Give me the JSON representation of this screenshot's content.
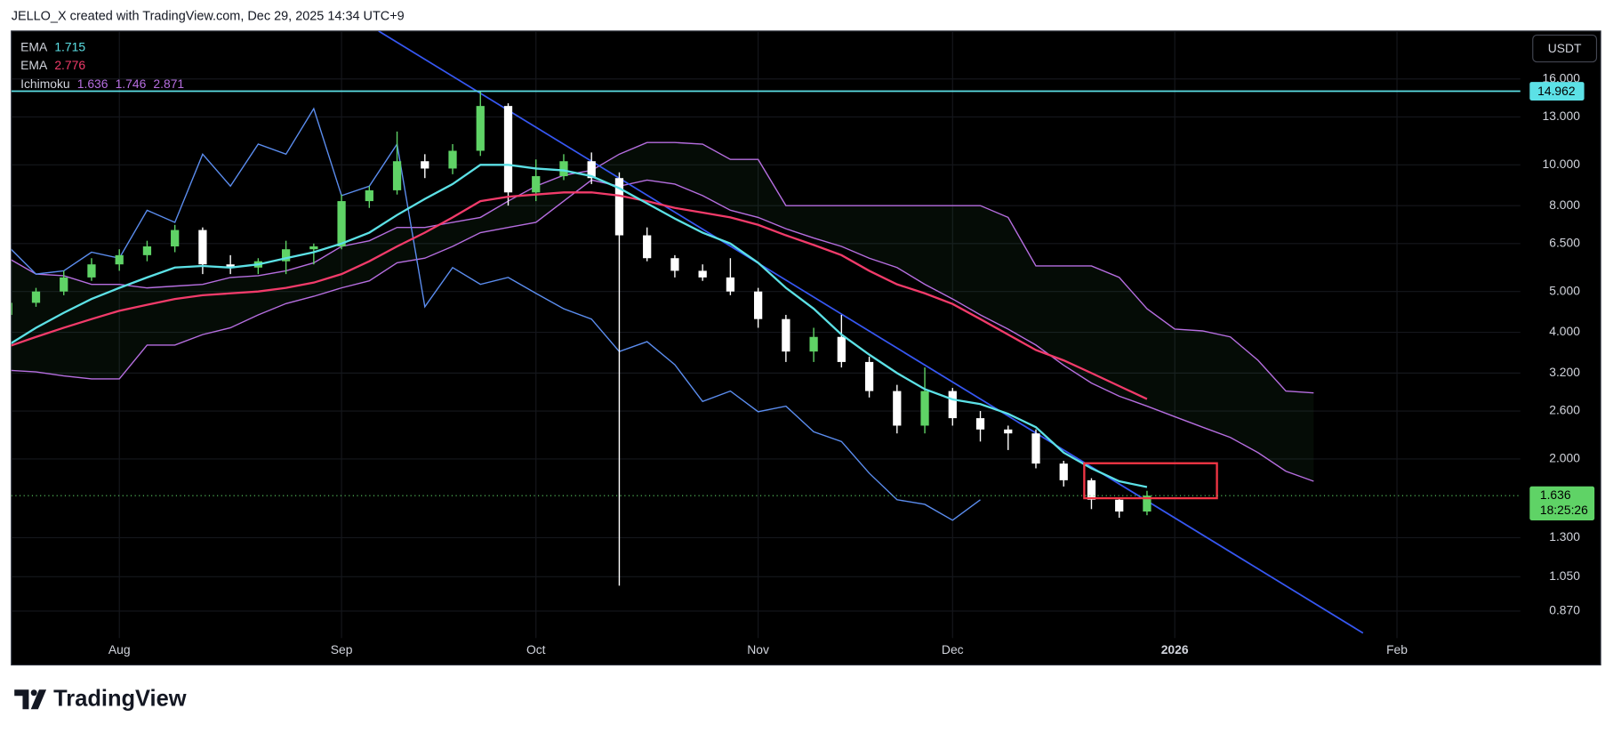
{
  "header": "JELLO_X created with TradingView.com, Dec 29, 2025 14:34 UTC+9",
  "brand": "TradingView",
  "currency": "USDT",
  "legend": [
    {
      "name": "EMA",
      "values": [
        1.715
      ],
      "color": "#5ce1e6"
    },
    {
      "name": "EMA",
      "values": [
        2.776
      ],
      "color": "#f23b6a"
    },
    {
      "name": "Ichimoku",
      "values": [
        1.636,
        1.746,
        2.871
      ],
      "color": "#b66ee0"
    }
  ],
  "chart_data": {
    "type": "candlestick",
    "log_scale": true,
    "grid": true,
    "up_color": "#5fd366",
    "down_color": "#ffffff",
    "categories": [
      null,
      null,
      null,
      null,
      "Aug",
      null,
      null,
      null,
      null,
      null,
      null,
      null,
      "Sep",
      null,
      null,
      null,
      null,
      null,
      null,
      "Oct",
      null,
      null,
      null,
      null,
      null,
      null,
      null,
      "Nov",
      null,
      null,
      null,
      null,
      null,
      null,
      "Dec",
      null,
      null,
      null,
      null,
      null,
      null,
      null,
      "2026",
      null,
      null,
      null,
      null,
      null,
      null,
      null,
      "Feb",
      null,
      null,
      null,
      null
    ],
    "open": [
      4.4,
      4.7,
      5.0,
      5.4,
      5.8,
      6.1,
      6.4,
      7.0,
      5.8,
      5.7,
      5.9,
      6.3,
      6.4,
      8.2,
      8.7,
      10.2,
      9.8,
      10.8,
      13.8,
      8.6,
      9.4,
      10.2,
      9.3,
      6.8,
      6.0,
      5.6,
      5.4,
      5.0,
      4.3,
      3.6,
      3.9,
      3.4,
      2.9,
      2.4,
      2.9,
      2.5,
      2.35,
      2.3,
      1.95,
      1.78,
      1.6,
      1.5,
      null,
      null,
      null,
      null,
      null,
      null,
      null,
      null,
      null,
      null,
      null,
      null,
      null
    ],
    "high": [
      4.8,
      5.1,
      5.6,
      6.0,
      6.3,
      6.6,
      7.2,
      7.1,
      6.1,
      6.0,
      6.6,
      6.5,
      8.5,
      8.9,
      12.0,
      10.6,
      11.2,
      15.0,
      14.0,
      10.3,
      10.6,
      10.7,
      9.6,
      7.1,
      6.1,
      5.8,
      6.0,
      5.1,
      4.4,
      4.1,
      4.4,
      3.5,
      3.0,
      3.3,
      2.95,
      2.6,
      2.4,
      2.35,
      1.98,
      1.8,
      1.62,
      1.68,
      null,
      null,
      null,
      null,
      null,
      null,
      null,
      null,
      null,
      null,
      null,
      null,
      null
    ],
    "low": [
      4.3,
      4.6,
      4.9,
      5.3,
      5.6,
      5.9,
      6.2,
      5.5,
      5.5,
      5.5,
      5.5,
      5.8,
      6.3,
      7.9,
      8.5,
      9.3,
      9.5,
      10.5,
      8.0,
      8.2,
      9.2,
      9.0,
      1.0,
      5.9,
      5.4,
      5.3,
      4.9,
      4.1,
      3.4,
      3.4,
      3.3,
      2.8,
      2.3,
      2.3,
      2.4,
      2.2,
      2.1,
      1.9,
      1.72,
      1.52,
      1.45,
      1.47,
      null,
      null,
      null,
      null,
      null,
      null,
      null,
      null,
      null,
      null,
      null,
      null,
      null
    ],
    "close": [
      4.7,
      5.0,
      5.4,
      5.8,
      6.1,
      6.4,
      7.0,
      5.8,
      5.7,
      5.9,
      6.3,
      6.4,
      8.2,
      8.7,
      10.2,
      9.8,
      10.8,
      13.8,
      8.6,
      9.4,
      10.2,
      9.3,
      6.8,
      6.0,
      5.6,
      5.4,
      5.0,
      4.3,
      3.6,
      3.9,
      3.4,
      2.9,
      2.4,
      2.9,
      2.5,
      2.35,
      2.3,
      1.95,
      1.78,
      1.6,
      1.5,
      1.636,
      null,
      null,
      null,
      null,
      null,
      null,
      null,
      null,
      null,
      null,
      null,
      null,
      null
    ],
    "series": [
      {
        "color": "#5ce1e6",
        "values": [
          3.73,
          4.1,
          4.45,
          4.8,
          5.1,
          5.4,
          5.7,
          5.75,
          5.7,
          5.8,
          6.0,
          6.2,
          6.5,
          6.9,
          7.6,
          8.3,
          9.0,
          10.0,
          10.0,
          9.8,
          9.7,
          9.4,
          8.8,
          8.1,
          7.45,
          6.9,
          6.5,
          5.85,
          5.1,
          4.55,
          3.95,
          3.54,
          3.2,
          2.93,
          2.77,
          2.7,
          2.56,
          2.38,
          2.07,
          1.9,
          1.77,
          1.715,
          null,
          null,
          null,
          null,
          null,
          null,
          null,
          null,
          null,
          null,
          null,
          null,
          null
        ]
      },
      {
        "color": "#f23b6a",
        "values": [
          3.7,
          3.9,
          4.1,
          4.3,
          4.5,
          4.65,
          4.8,
          4.9,
          4.95,
          5.0,
          5.1,
          5.25,
          5.5,
          5.9,
          6.4,
          6.9,
          7.5,
          8.2,
          8.4,
          8.5,
          8.6,
          8.6,
          8.45,
          8.2,
          7.9,
          7.7,
          7.5,
          7.2,
          6.8,
          6.45,
          6.1,
          5.6,
          5.2,
          4.95,
          4.67,
          4.3,
          3.95,
          3.63,
          3.43,
          3.2,
          2.98,
          2.776,
          null,
          null,
          null,
          null,
          null,
          null,
          null,
          null,
          null,
          null,
          null,
          null,
          null
        ]
      },
      {
        "color": "#5b8def",
        "values": [
          6.4,
          5.5,
          5.6,
          6.2,
          6.0,
          7.8,
          7.3,
          10.6,
          8.9,
          11.2,
          10.6,
          13.6,
          8.45,
          8.9,
          11.2,
          4.6,
          5.7,
          5.2,
          5.4,
          4.95,
          4.55,
          4.3,
          3.6,
          3.8,
          3.35,
          2.74,
          2.9,
          2.59,
          2.67,
          2.32,
          2.2,
          1.85,
          1.6,
          1.56,
          1.43,
          1.6,
          null,
          null,
          null,
          null,
          null,
          null,
          null,
          null,
          null,
          null,
          null,
          null,
          null,
          null,
          null,
          null,
          null,
          null,
          null
        ]
      },
      {
        "color": "#b66ee0",
        "values": [
          6.0,
          5.5,
          5.45,
          5.2,
          5.2,
          5.1,
          5.15,
          5.2,
          5.4,
          5.45,
          5.6,
          5.85,
          6.4,
          6.6,
          7.1,
          7.1,
          7.3,
          7.5,
          8.2,
          8.9,
          9.45,
          9.7,
          10.6,
          11.3,
          11.3,
          11.2,
          10.3,
          10.3,
          8.0,
          8.0,
          8.0,
          8.0,
          8.0,
          8.0,
          8.0,
          8.0,
          7.5,
          5.75,
          5.75,
          5.75,
          5.4,
          4.55,
          4.07,
          4.03,
          3.9,
          3.43,
          2.9,
          2.871,
          null,
          null,
          null,
          null,
          null,
          null,
          null
        ]
      },
      {
        "color": "#b66ee0",
        "values": [
          3.25,
          3.22,
          3.15,
          3.1,
          3.1,
          3.73,
          3.73,
          3.95,
          4.1,
          4.4,
          4.68,
          4.87,
          5.1,
          5.3,
          5.85,
          6.0,
          6.4,
          6.9,
          7.1,
          7.3,
          8.2,
          9.2,
          8.9,
          9.2,
          9.0,
          8.45,
          7.8,
          7.5,
          7.05,
          6.7,
          6.4,
          6.0,
          5.7,
          5.2,
          4.8,
          4.4,
          4.07,
          3.73,
          3.34,
          3.03,
          2.82,
          2.67,
          2.52,
          2.38,
          2.25,
          2.07,
          1.87,
          1.77,
          null,
          null,
          null,
          null,
          null,
          null,
          null
        ]
      }
    ],
    "cloud_color": "#4caf50",
    "ylim": [
      0.75,
      20.8
    ],
    "yticks": [
      {
        "value": 0.87,
        "label": "0.870"
      },
      {
        "value": 1.05,
        "label": "1.050"
      },
      {
        "value": 1.3,
        "label": "1.300"
      },
      {
        "value": 2,
        "label": "2.000"
      },
      {
        "value": 2.6,
        "label": "2.600"
      },
      {
        "value": 3.2,
        "label": "3.200"
      },
      {
        "value": 4,
        "label": "4.000"
      },
      {
        "value": 5,
        "label": "5.000"
      },
      {
        "value": 6.5,
        "label": "6.500"
      },
      {
        "value": 8,
        "label": "8.000"
      },
      {
        "value": 10,
        "label": "10.000"
      },
      {
        "value": 13,
        "label": "13.000"
      },
      {
        "value": 16,
        "label": "16.000"
      }
    ],
    "price_line": {
      "value": 14.962,
      "color": "#5ce1e6"
    },
    "last_price": {
      "value": 1.636,
      "countdown": "18:25:26",
      "color": "#5fd366"
    }
  }
}
